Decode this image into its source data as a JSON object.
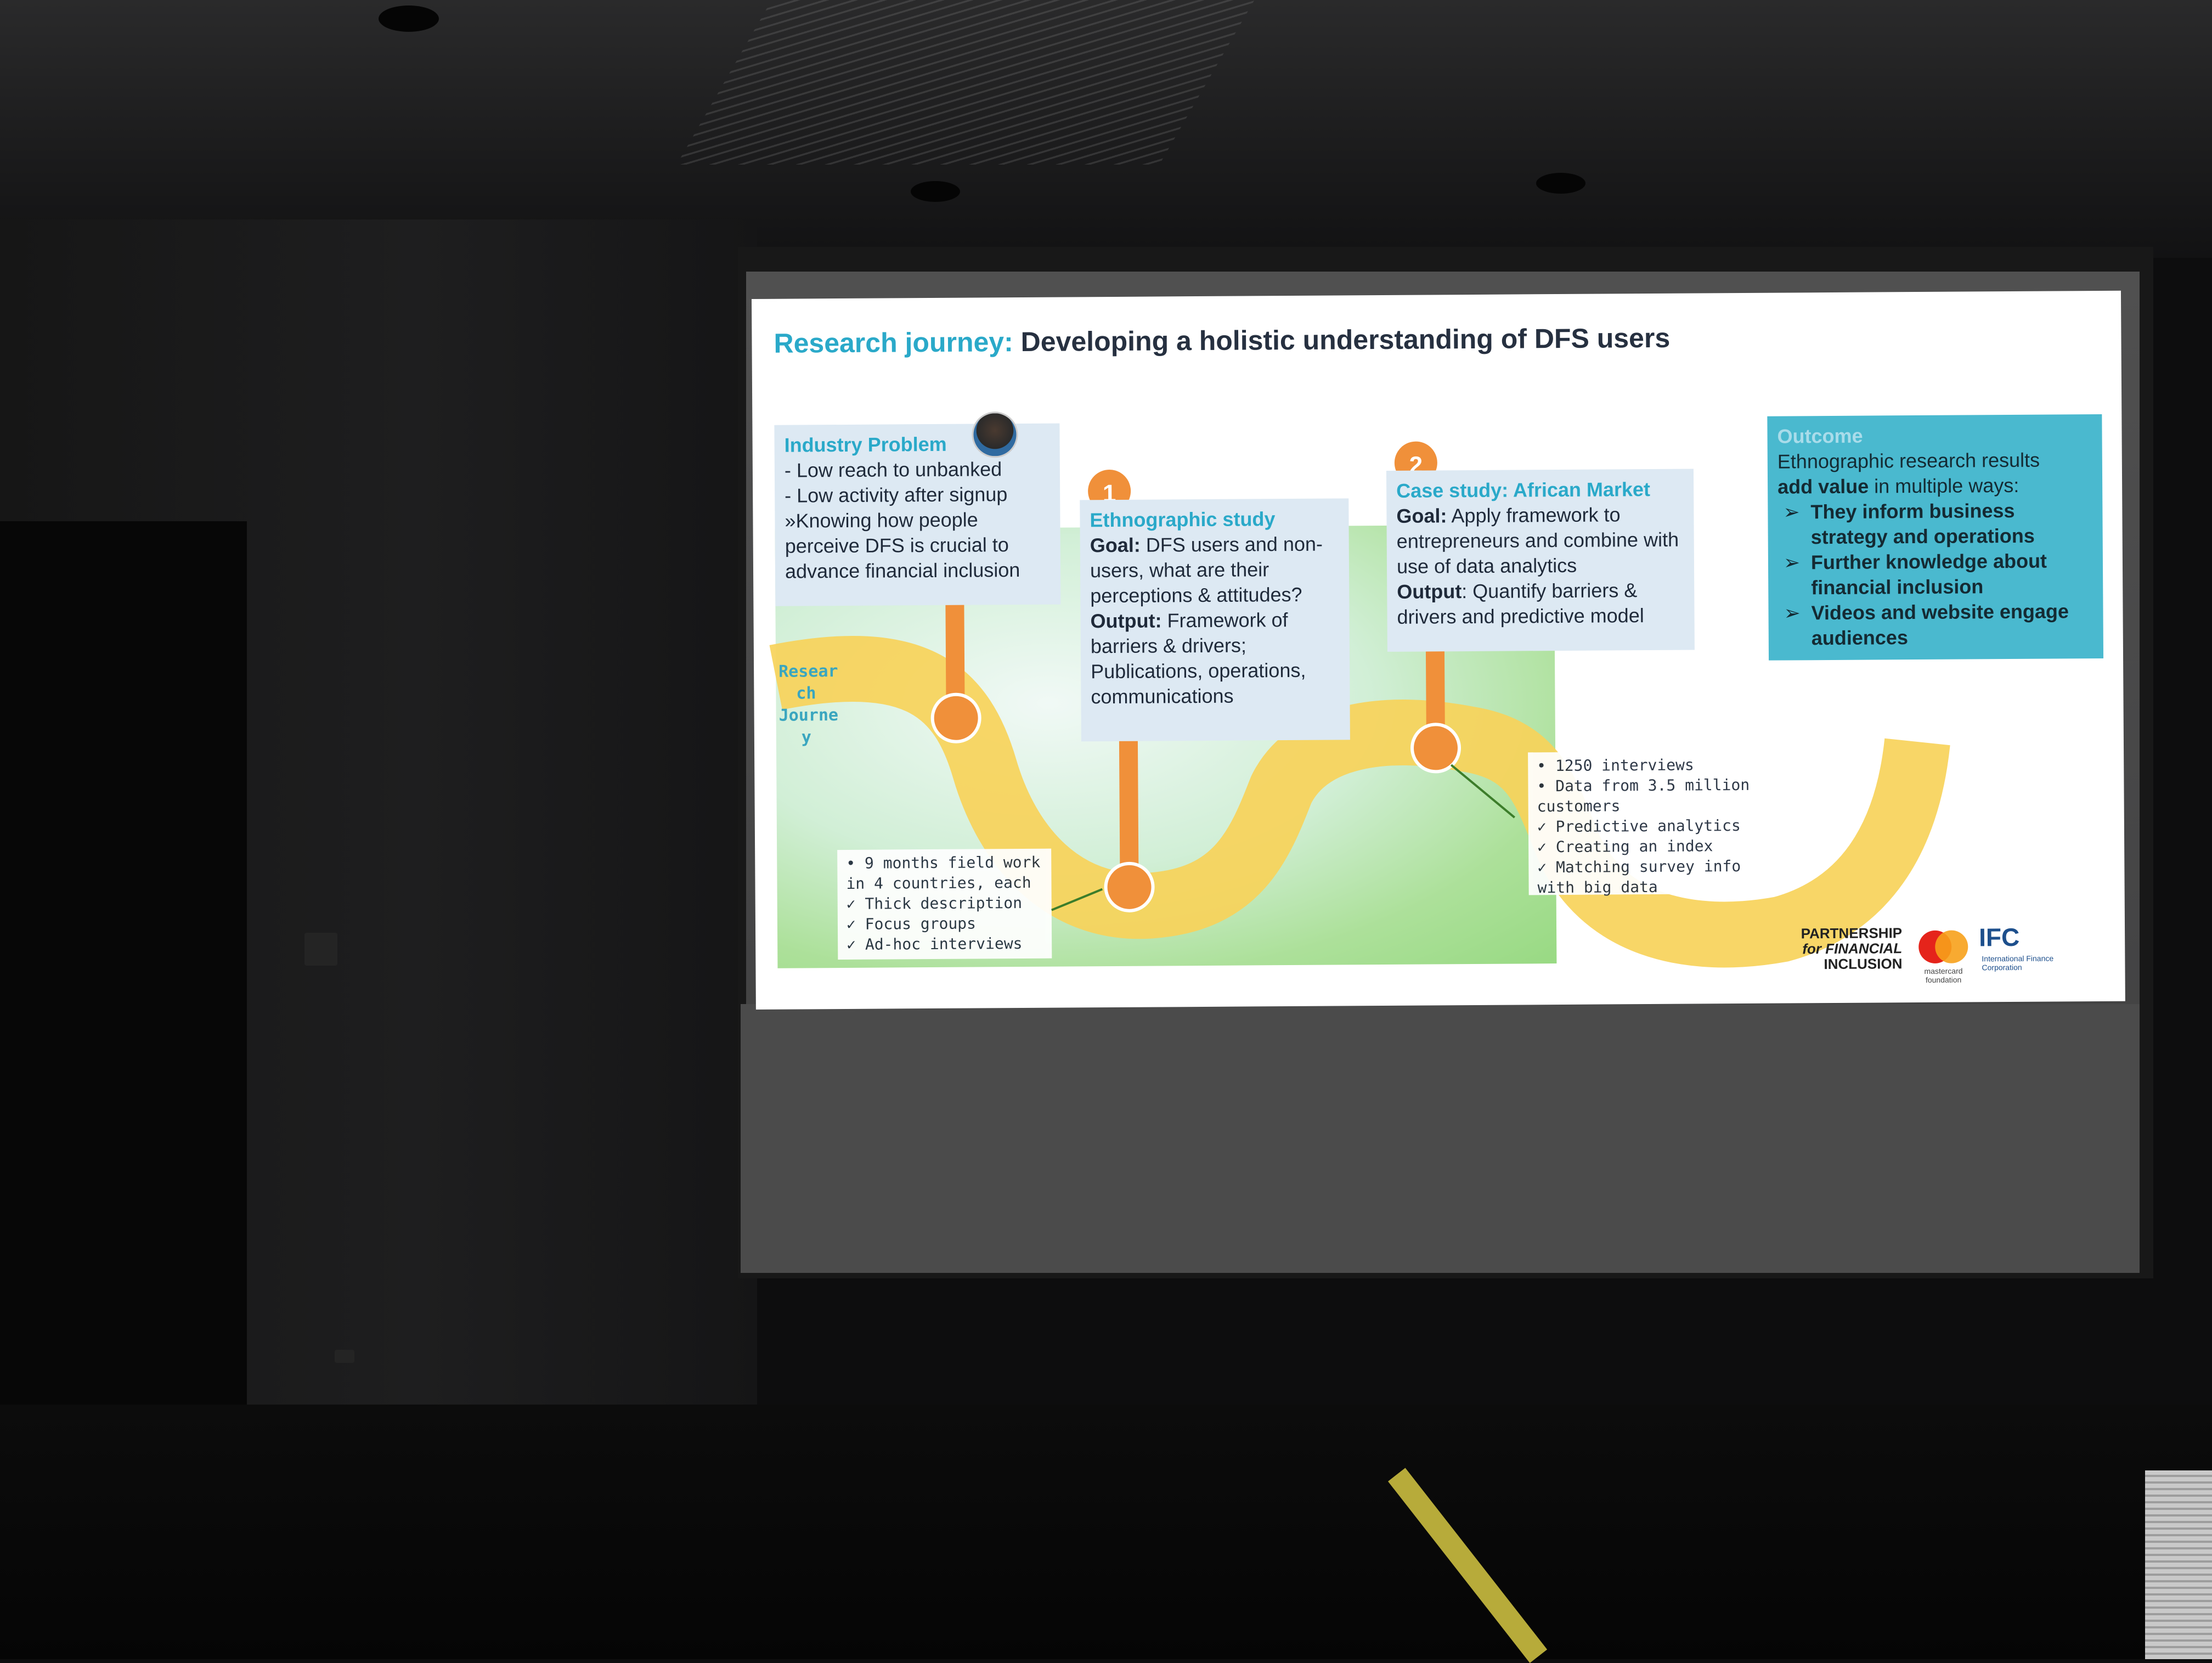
{
  "slide": {
    "title_prefix": "Research journey:",
    "title_main": "Developing a holistic understanding of DFS users",
    "vertical_label": [
      "Resear",
      "ch",
      "Journe",
      "y"
    ],
    "industry_problem": {
      "title": "Industry Problem",
      "lines": [
        "- Low reach to unbanked",
        "- Low activity after signup",
        "»Knowing how people",
        "perceive DFS is crucial to",
        "advance financial inclusion"
      ]
    },
    "step1": {
      "badge": "1",
      "title": "Ethnographic study",
      "goal_label": "Goal:",
      "goal_text": "DFS users and non-users, what are their perceptions & attitudes?",
      "output_label": "Output:",
      "output_text": "Framework of barriers & drivers; Publications, operations, communications"
    },
    "step2": {
      "badge": "2",
      "title": "Case study: African Market",
      "goal_label": "Goal:",
      "goal_text": "Apply framework to entrepreneurs and combine with use of data analytics",
      "output_label": "Output",
      "output_text": ": Quantify barriers & drivers and predictive model"
    },
    "note1": {
      "lines": [
        "• 9 months field work",
        "  in 4 countries, each",
        "✓ Thick description",
        "✓ Focus groups",
        "✓ Ad-hoc interviews"
      ]
    },
    "note2": {
      "lines": [
        "• 1250 interviews",
        "• Data from 3.5 million",
        "  customers",
        "✓ Predictive analytics",
        "✓ Creating an index",
        "✓ Matching survey info",
        "  with big data"
      ]
    },
    "outcome": {
      "title": "Outcome",
      "intro1": "Ethnographic research results",
      "intro2_bold": "add value",
      "intro2_rest": " in multiple  ways:",
      "bullets": [
        "They inform business strategy and operations",
        "Further knowledge about financial inclusion",
        "Videos and website engage audiences"
      ]
    },
    "logos": {
      "pfi": [
        "PARTNERSHIP",
        "for FINANCIAL",
        "INCLUSION"
      ],
      "mastercard": "mastercard foundation",
      "ifc": "IFC",
      "ifc_sub": "International Finance Corporation"
    },
    "colors": {
      "accent": "#2aa9c9",
      "path": "#f7d35a",
      "marker": "#f0903a",
      "outcome_bg": "#4ab9cf"
    }
  }
}
